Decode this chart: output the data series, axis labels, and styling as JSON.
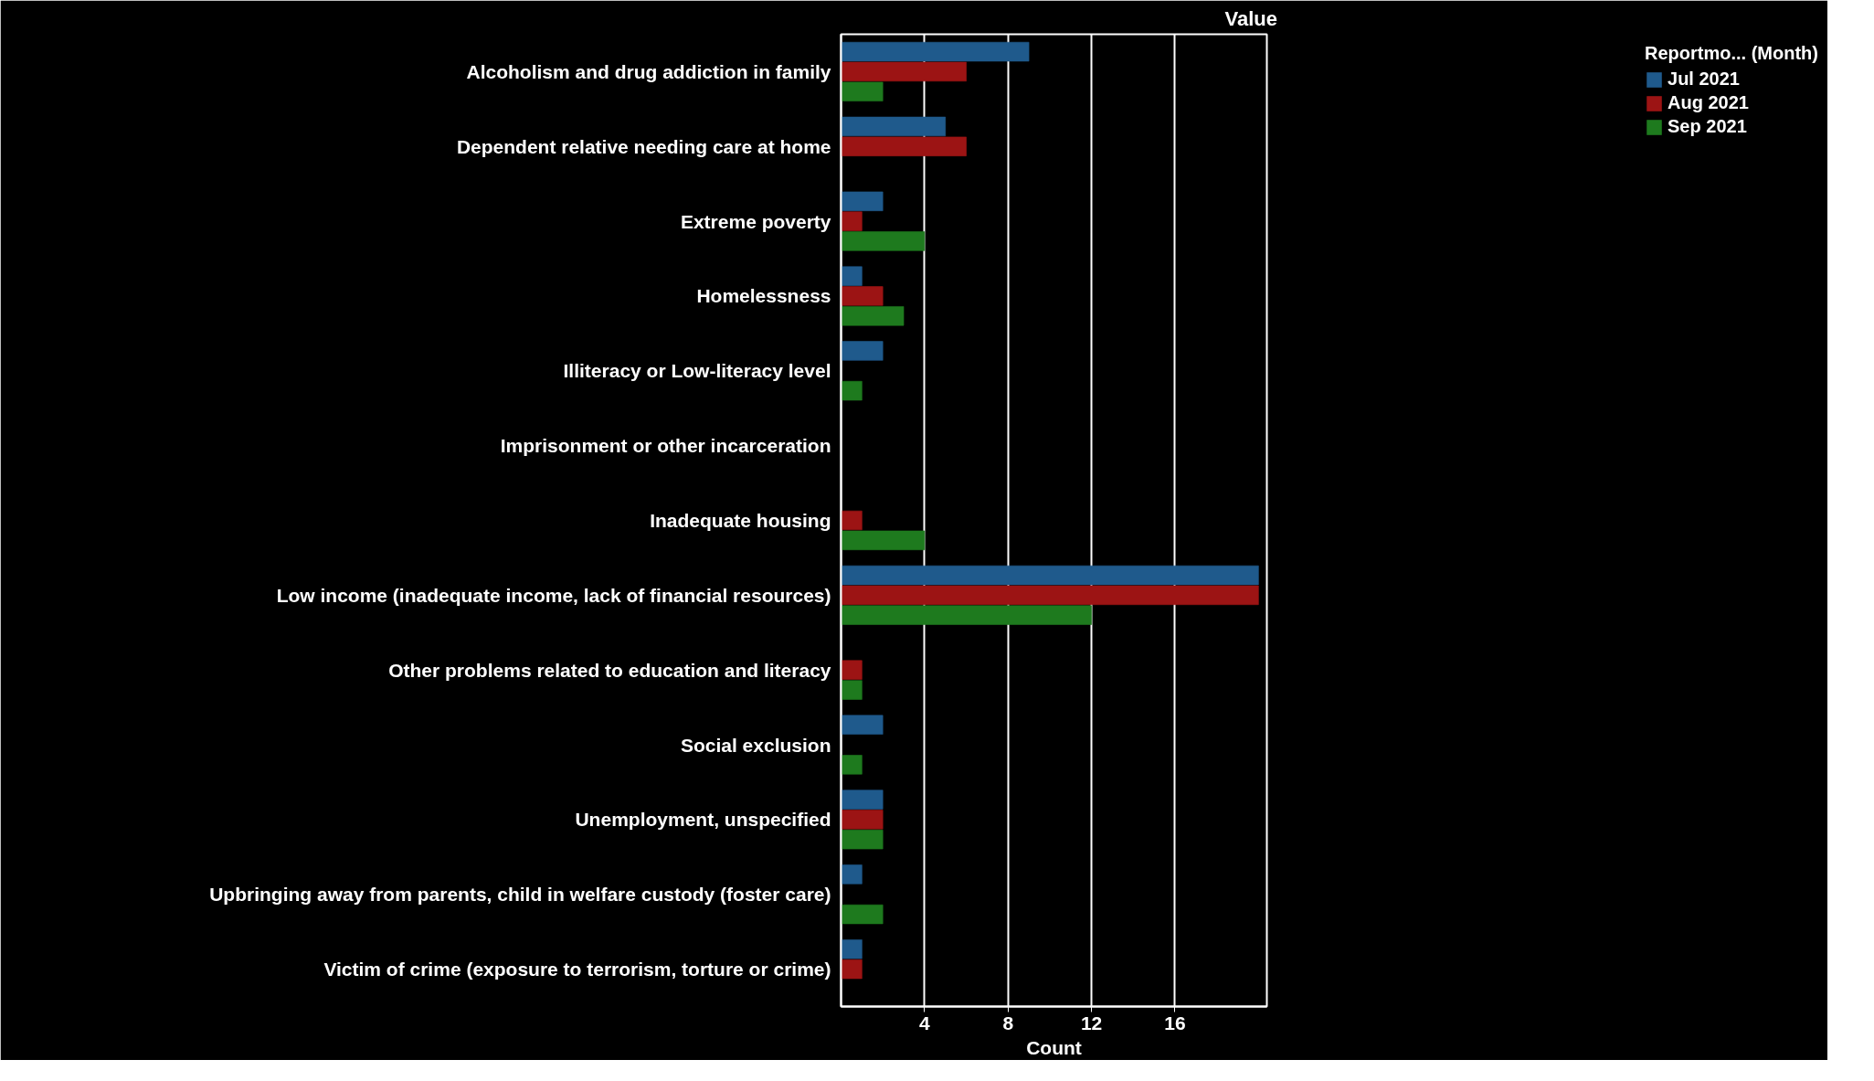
{
  "chart_data": {
    "type": "bar",
    "orientation": "horizontal",
    "ylabel": "Value",
    "xlabel": "Count",
    "legend_title": "Reportmo... (Month)",
    "legend": "right",
    "categories": [
      "Alcoholism and drug addiction in family",
      "Dependent relative needing care at home",
      "Extreme poverty",
      "Homelessness",
      "Illiteracy or Low-literacy level",
      "Imprisonment or other incarceration",
      "Inadequate housing",
      "Low income (inadequate income, lack of financial resources)",
      "Other problems related to education and literacy",
      "Social exclusion",
      "Unemployment, unspecified",
      "Upbringing away from parents, child in welfare custody (foster care)",
      "Victim of crime (exposure to terrorism, torture or crime)"
    ],
    "series": [
      {
        "name": "Jul 2021",
        "color": "#1f5a8c",
        "values": [
          9,
          5,
          2,
          1,
          2,
          null,
          null,
          20,
          null,
          2,
          2,
          1,
          1
        ]
      },
      {
        "name": "Aug 2021",
        "color": "#9c1414",
        "values": [
          6,
          6,
          1,
          2,
          null,
          null,
          1,
          20,
          1,
          null,
          2,
          null,
          1
        ]
      },
      {
        "name": "Sep 2021",
        "color": "#1e7a1e",
        "values": [
          2,
          null,
          4,
          3,
          1,
          null,
          4,
          12,
          1,
          1,
          2,
          2,
          null
        ]
      }
    ],
    "xlim": [
      0,
      20.4
    ],
    "xticks": [
      4,
      8,
      12,
      16
    ],
    "grid": "x"
  }
}
